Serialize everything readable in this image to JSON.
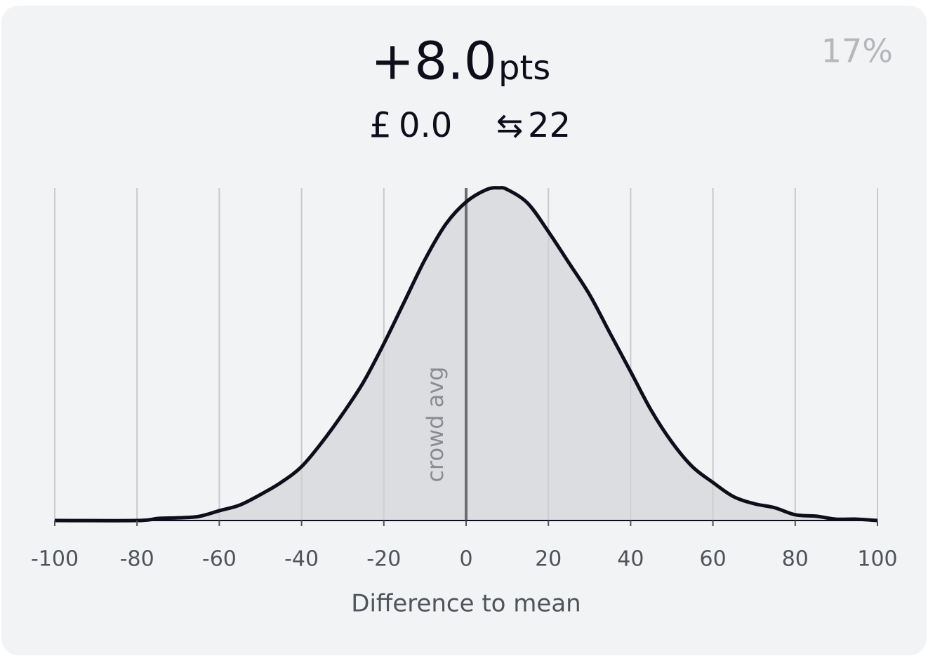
{
  "header": {
    "score": "+8.0",
    "unit": "pts",
    "currency": "£",
    "amount": "0.0",
    "swap_icon": "⇆",
    "swaps": "22",
    "percent": "17%"
  },
  "chart_data": {
    "type": "area",
    "x_label": "Difference to mean",
    "x": [
      -100,
      -80,
      -75,
      -70,
      -65,
      -60,
      -55,
      -50,
      -45,
      -40,
      -35,
      -30,
      -25,
      -20,
      -15,
      -10,
      -5,
      0,
      5,
      8,
      10,
      15,
      20,
      25,
      30,
      35,
      40,
      45,
      50,
      55,
      60,
      65,
      70,
      75,
      80,
      85,
      90,
      95,
      100
    ],
    "values": [
      0,
      0,
      0.006,
      0.008,
      0.012,
      0.029,
      0.046,
      0.077,
      0.113,
      0.16,
      0.233,
      0.317,
      0.41,
      0.525,
      0.65,
      0.775,
      0.879,
      0.946,
      0.983,
      0.988,
      0.983,
      0.942,
      0.858,
      0.765,
      0.671,
      0.556,
      0.442,
      0.327,
      0.233,
      0.16,
      0.113,
      0.071,
      0.05,
      0.038,
      0.017,
      0.013,
      0.004,
      0.004,
      0
    ],
    "line_color": "#0d0e1a",
    "fill_color": "#dcdde0",
    "xlim": [
      -100,
      100
    ],
    "xticks": [
      -100,
      -80,
      -60,
      -40,
      -20,
      0,
      20,
      40,
      60,
      80,
      100
    ],
    "ylim": [
      0,
      1
    ],
    "grid": true,
    "crowd_avg": {
      "value": 0,
      "label": "crowd avg"
    }
  }
}
